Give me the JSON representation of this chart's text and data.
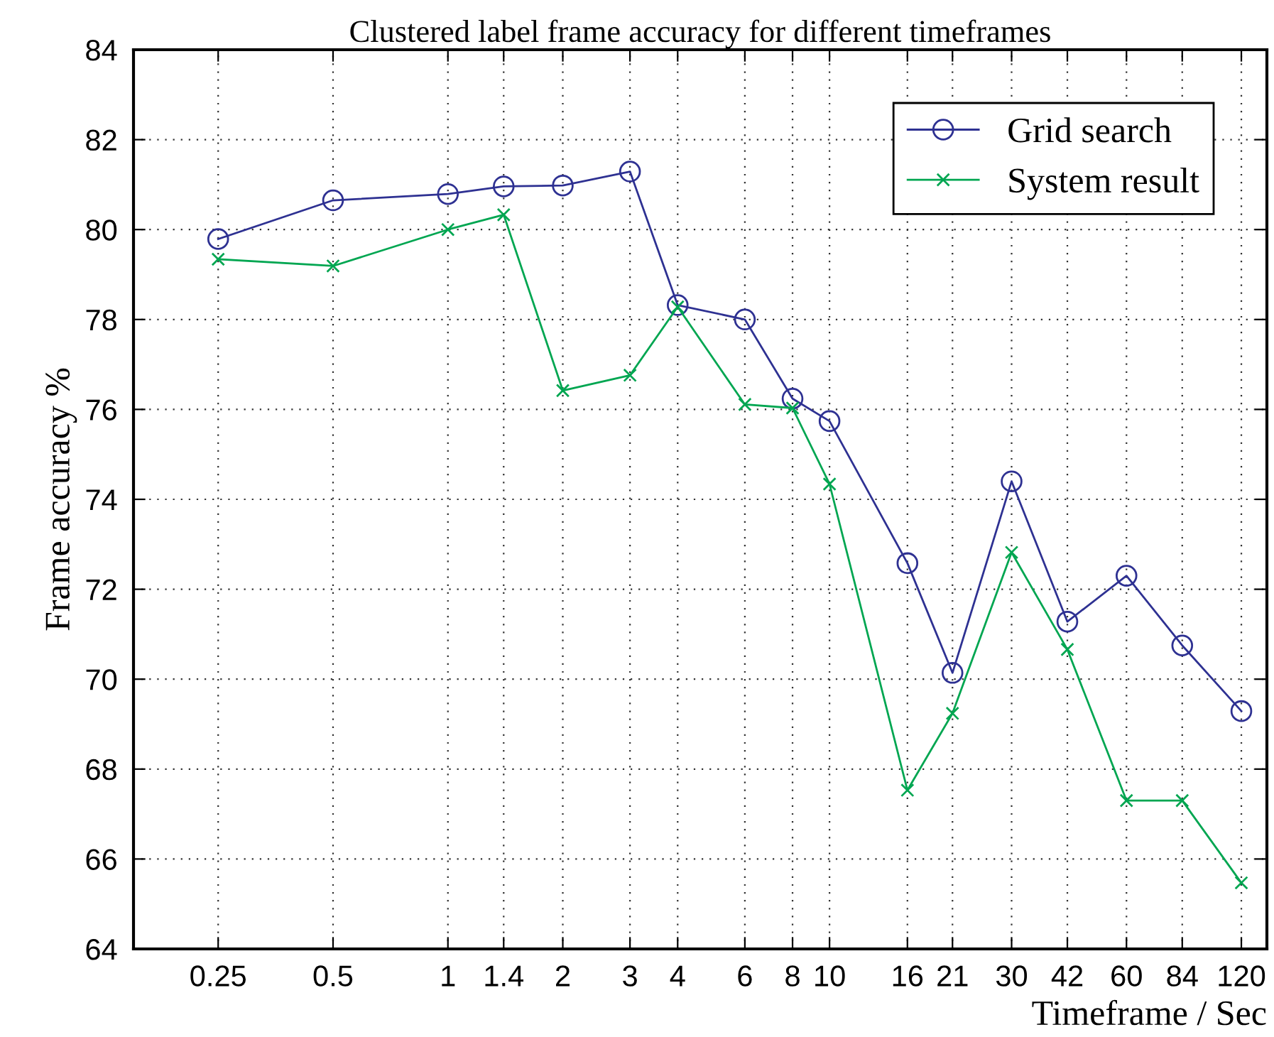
{
  "chart_data": {
    "type": "line",
    "title": "Clustered label frame accuracy for different timeframes",
    "xlabel": "Timeframe / Sec",
    "ylabel": "Frame accuracy %",
    "x": [
      0.25,
      0.5,
      1,
      1.4,
      2,
      3,
      4,
      6,
      8,
      10,
      16,
      21,
      30,
      42,
      60,
      84,
      120
    ],
    "series": [
      {
        "name": "Grid search",
        "color": "#2e3192",
        "marker": "circle",
        "values": [
          79.79,
          80.65,
          80.79,
          80.96,
          80.98,
          81.29,
          78.32,
          78.0,
          76.24,
          75.74,
          72.58,
          70.14,
          74.4,
          71.28,
          72.3,
          70.75,
          69.29
        ]
      },
      {
        "name": "System result",
        "color": "#00a651",
        "marker": "cross",
        "values": [
          79.34,
          79.19,
          80.0,
          80.33,
          76.42,
          76.76,
          78.28,
          76.11,
          76.03,
          74.34,
          67.53,
          69.24,
          72.82,
          70.66,
          67.3,
          67.3,
          65.47
        ]
      }
    ],
    "log": "x",
    "xlim": [
      0.15,
      140
    ],
    "xticks": [
      0.25,
      0.5,
      1,
      1.4,
      2,
      3,
      4,
      6,
      8,
      10,
      16,
      21,
      30,
      42,
      60,
      84,
      120
    ],
    "ylim": [
      64,
      84
    ],
    "yticks": [
      64,
      66,
      68,
      70,
      72,
      74,
      76,
      78,
      80,
      82,
      84
    ],
    "grid": true,
    "legend": "top right",
    "line_style": "solid"
  }
}
